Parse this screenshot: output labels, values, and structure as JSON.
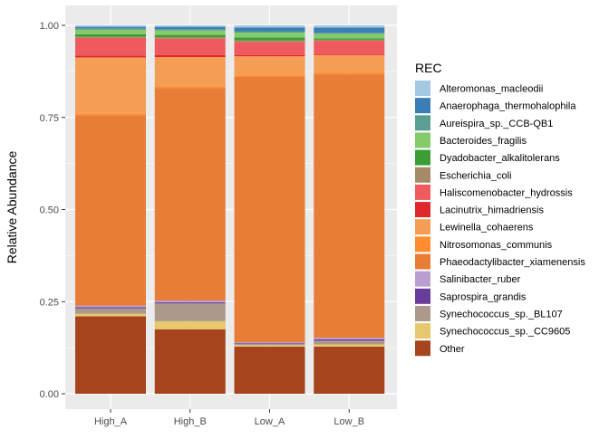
{
  "chart_data": {
    "type": "bar",
    "stacked": true,
    "title": "",
    "xlabel": "",
    "ylabel": "Relative Abundance",
    "ylim": [
      0,
      1
    ],
    "y_ticks": [
      {
        "value": 0.0,
        "label": "0.00"
      },
      {
        "value": 0.25,
        "label": "0.25"
      },
      {
        "value": 0.5,
        "label": "0.50"
      },
      {
        "value": 0.75,
        "label": "0.75"
      },
      {
        "value": 1.0,
        "label": "1.00"
      }
    ],
    "grid": true,
    "legend_title": "REC",
    "legend_position": "right",
    "categories": [
      "High_A",
      "High_B",
      "Low_A",
      "Low_B"
    ],
    "series": [
      {
        "name": "Other",
        "color": "#A6451D",
        "values": [
          0.21,
          0.175,
          0.128,
          0.128
        ]
      },
      {
        "name": "Synechococcus_sp._CC9605",
        "color": "#E6C86E",
        "values": [
          0.007,
          0.022,
          0.004,
          0.006
        ]
      },
      {
        "name": "Synechococcus_sp._BL107",
        "color": "#AD998B",
        "values": [
          0.015,
          0.048,
          0.003,
          0.01
        ]
      },
      {
        "name": "Saprospira_grandis",
        "color": "#6A3D9A",
        "values": [
          0.003,
          0.003,
          0.002,
          0.004
        ]
      },
      {
        "name": "Salinibacter_ruber",
        "color": "#BB9ED1",
        "values": [
          0.004,
          0.005,
          0.003,
          0.004
        ]
      },
      {
        "name": "Phaeodactylibacter_xiamenensis",
        "color": "#E87D37",
        "values": [
          0.517,
          0.577,
          0.72,
          0.715
        ]
      },
      {
        "name": "Nitrosomonas_communis",
        "color": "#FF8C2E",
        "values": [
          0.004,
          0.004,
          0.004,
          0.005
        ]
      },
      {
        "name": "Lewinella_cohaerens",
        "color": "#F49D55",
        "values": [
          0.153,
          0.08,
          0.052,
          0.047
        ]
      },
      {
        "name": "Lacinutrix_himadriensis",
        "color": "#E0272B",
        "values": [
          0.005,
          0.005,
          0.003,
          0.002
        ]
      },
      {
        "name": "Haliscomenobacter_hydrossis",
        "color": "#EF5A5E",
        "values": [
          0.048,
          0.045,
          0.036,
          0.037
        ]
      },
      {
        "name": "Escherichia_coli",
        "color": "#A68A67",
        "values": [
          0.003,
          0.004,
          0.004,
          0.003
        ]
      },
      {
        "name": "Dyadobacter_alkalitolerans",
        "color": "#3A9E34",
        "values": [
          0.007,
          0.006,
          0.008,
          0.004
        ]
      },
      {
        "name": "Bacteroides_fragilis",
        "color": "#84CB6A",
        "values": [
          0.012,
          0.012,
          0.013,
          0.012
        ]
      },
      {
        "name": "Aureispira_sp._CCB-QB1",
        "color": "#5A9E94",
        "values": [
          0.004,
          0.004,
          0.004,
          0.003
        ]
      },
      {
        "name": "Anaerophaga_thermohalophila",
        "color": "#3A7EB5",
        "values": [
          0.004,
          0.006,
          0.01,
          0.014
        ]
      },
      {
        "name": "Alteromonas_macleodii",
        "color": "#A2C9E1",
        "values": [
          0.004,
          0.004,
          0.006,
          0.006
        ]
      }
    ]
  }
}
